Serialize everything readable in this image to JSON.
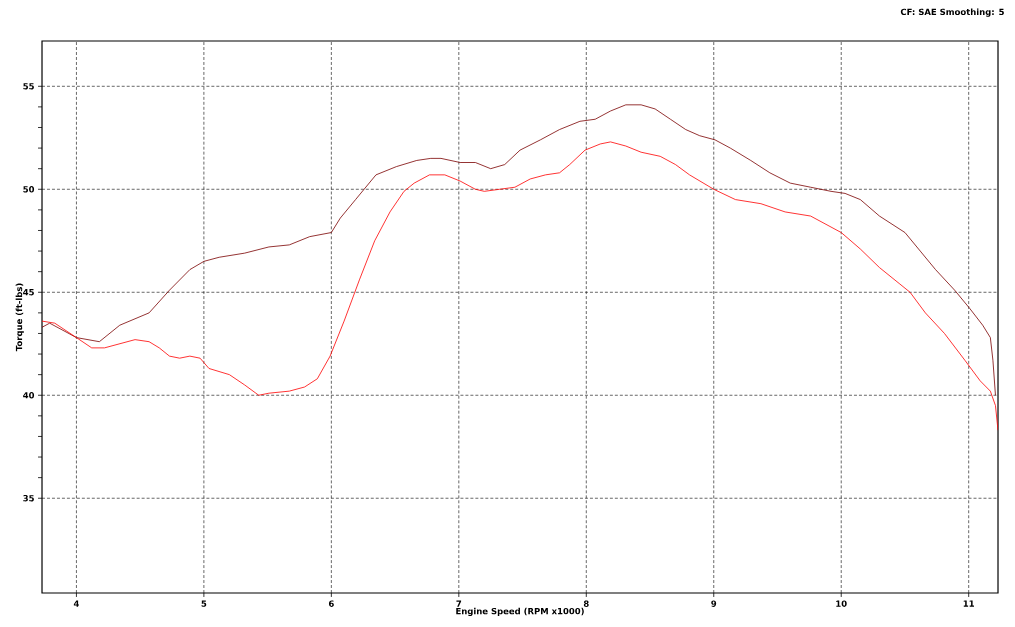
{
  "chart_data": {
    "type": "line",
    "xlabel": "Engine Speed (RPM x1000)",
    "ylabel": "Torque (ft-lbs)",
    "annotations": [
      "CF: SAE  Smoothing: 5"
    ],
    "xlim": [
      3.73,
      11.23
    ],
    "ylim": [
      30.4,
      57.2
    ],
    "xticks": [
      4,
      5,
      6,
      7,
      8,
      9,
      10,
      11
    ],
    "yticks": [
      35,
      40,
      45,
      50,
      55
    ],
    "grid": true,
    "marker": "none",
    "series": [
      {
        "color": "#7a0000",
        "x": [
          3.73,
          3.79,
          4.0,
          4.18,
          4.34,
          4.57,
          4.73,
          4.89,
          5.0,
          5.12,
          5.32,
          5.51,
          5.67,
          5.83,
          6.0,
          6.07,
          6.19,
          6.35,
          6.51,
          6.67,
          6.78,
          6.86,
          7.01,
          7.13,
          7.25,
          7.36,
          7.48,
          7.64,
          7.79,
          7.95,
          8.07,
          8.19,
          8.31,
          8.43,
          8.54,
          8.66,
          8.78,
          8.89,
          9.01,
          9.13,
          9.29,
          9.44,
          9.6,
          9.76,
          9.92,
          10.03,
          10.15,
          10.3,
          10.5,
          10.62,
          10.74,
          10.89,
          11.01,
          11.11,
          11.17,
          11.19,
          11.21
        ],
        "values": [
          43.3,
          43.5,
          42.8,
          42.6,
          43.4,
          44.0,
          45.1,
          46.1,
          46.5,
          46.7,
          46.9,
          47.2,
          47.3,
          47.7,
          47.9,
          48.6,
          49.5,
          50.7,
          51.1,
          51.4,
          51.5,
          51.5,
          51.3,
          51.3,
          51.0,
          51.2,
          51.9,
          52.4,
          52.9,
          53.3,
          53.4,
          53.8,
          54.1,
          54.1,
          53.9,
          53.4,
          52.9,
          52.6,
          52.4,
          52.0,
          51.4,
          50.8,
          50.3,
          50.1,
          49.9,
          49.8,
          49.5,
          48.7,
          47.9,
          47.0,
          46.1,
          45.1,
          44.2,
          43.4,
          42.8,
          41.7,
          40.0
        ]
      },
      {
        "color": "#ff0000",
        "x": [
          3.73,
          3.83,
          4.0,
          4.12,
          4.22,
          4.34,
          4.46,
          4.57,
          4.65,
          4.73,
          4.81,
          4.89,
          4.97,
          5.04,
          5.2,
          5.32,
          5.43,
          5.51,
          5.67,
          5.79,
          5.89,
          5.99,
          6.1,
          6.22,
          6.34,
          6.46,
          6.57,
          6.65,
          6.77,
          6.89,
          7.01,
          7.13,
          7.2,
          7.32,
          7.44,
          7.56,
          7.68,
          7.79,
          7.87,
          7.99,
          8.11,
          8.19,
          8.31,
          8.43,
          8.58,
          8.7,
          8.81,
          9.0,
          9.17,
          9.37,
          9.56,
          9.76,
          10.0,
          10.15,
          10.3,
          10.46,
          10.54,
          10.66,
          10.81,
          10.97,
          11.09,
          11.17,
          11.21,
          11.23
        ],
        "values": [
          43.6,
          43.5,
          42.8,
          42.3,
          42.3,
          42.5,
          42.7,
          42.6,
          42.3,
          41.9,
          41.8,
          41.9,
          41.8,
          41.3,
          41.0,
          40.5,
          40.0,
          40.1,
          40.2,
          40.4,
          40.8,
          41.9,
          43.6,
          45.6,
          47.5,
          48.9,
          49.9,
          50.3,
          50.7,
          50.7,
          50.4,
          50.0,
          49.9,
          50.0,
          50.1,
          50.5,
          50.7,
          50.8,
          51.2,
          51.9,
          52.2,
          52.3,
          52.1,
          51.8,
          51.6,
          51.2,
          50.7,
          50.0,
          49.5,
          49.3,
          48.9,
          48.7,
          47.9,
          47.1,
          46.2,
          45.4,
          45.0,
          44.0,
          43.0,
          41.7,
          40.7,
          40.2,
          39.5,
          38.3
        ]
      }
    ]
  }
}
